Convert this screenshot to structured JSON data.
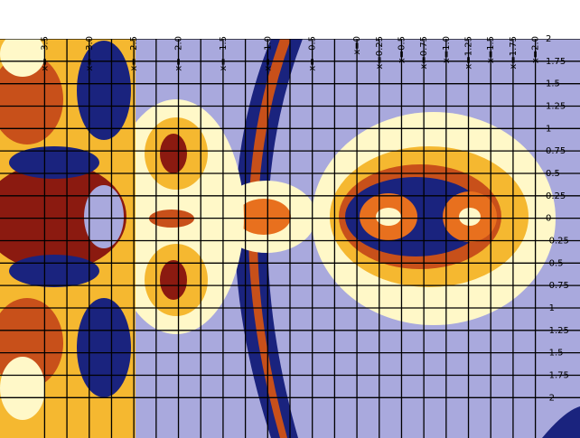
{
  "chart_data": {
    "type": "fractal",
    "xticks": [
      {
        "value": -3.5,
        "label": "x=−3.5"
      },
      {
        "value": -3.0,
        "label": "x=−3.0"
      },
      {
        "value": -2.5,
        "label": "x=−2.5"
      },
      {
        "value": -2.0,
        "label": "x=−2.0"
      },
      {
        "value": -1.5,
        "label": "x=−1.5"
      },
      {
        "value": -1.0,
        "label": "x=−1.0"
      },
      {
        "value": -0.5,
        "label": "x=−0.5"
      },
      {
        "value": 0,
        "label": "x=0"
      },
      {
        "value": 0.25,
        "label": "x=0.25"
      },
      {
        "value": 0.5,
        "label": "x=0.5"
      },
      {
        "value": 0.75,
        "label": "x=0.75"
      },
      {
        "value": 1.0,
        "label": "x=1.0"
      },
      {
        "value": 1.25,
        "label": "x=1.25"
      },
      {
        "value": 1.5,
        "label": "x=1.5"
      },
      {
        "value": 1.75,
        "label": "x=1.75"
      },
      {
        "value": 2.0,
        "label": "x=2.0"
      }
    ],
    "yticks": [
      2,
      1.75,
      1.5,
      1.25,
      1,
      0.75,
      0.5,
      0.25,
      0,
      -0.25,
      -0.5,
      -0.75,
      -1,
      -1.25,
      -1.5,
      -1.75,
      -2
    ],
    "xlim": [
      -4,
      2.5
    ],
    "ylim": [
      -2.45,
      2
    ],
    "grid": true
  }
}
